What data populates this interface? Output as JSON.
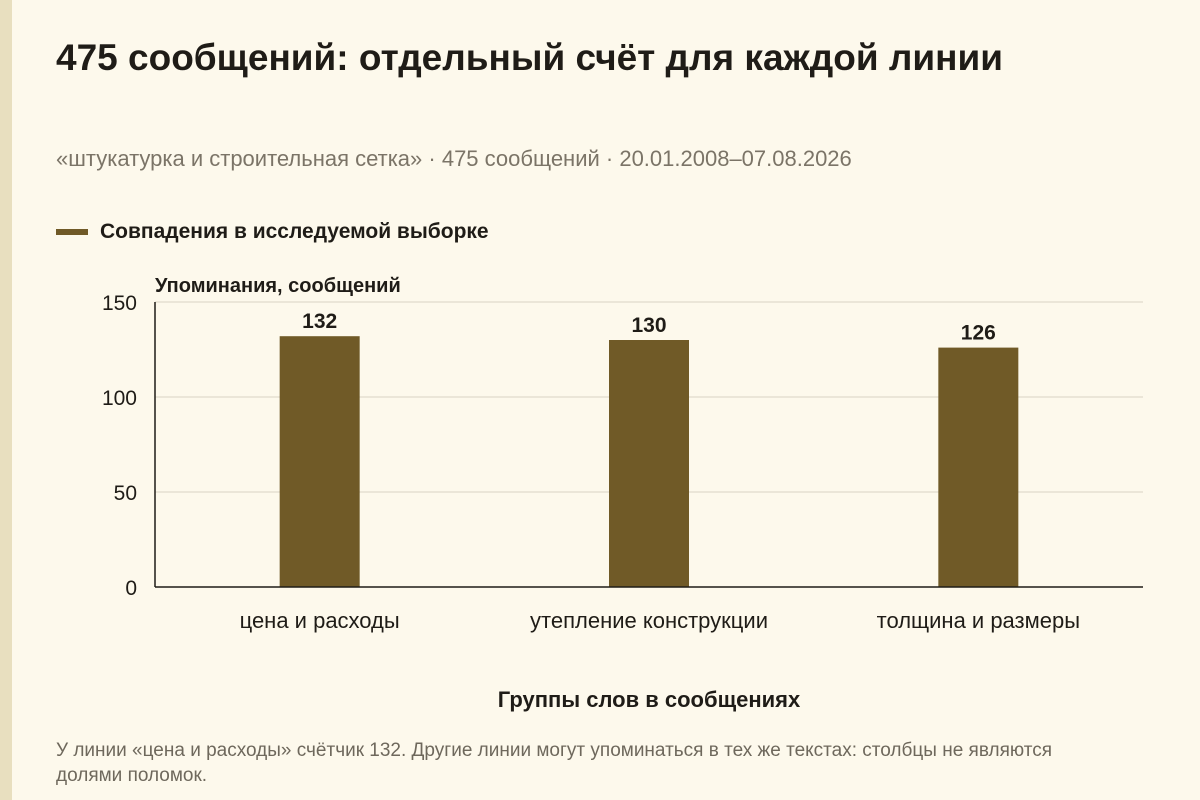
{
  "title": "475 сообщений: отдельный счёт для каждой линии",
  "subtitle": "«штукатурка и строительная сетка» · 475 сообщений · 20.01.2008–07.08.2026",
  "legend": {
    "label": "Совпадения в исследуемой выборке",
    "color": "#705a27"
  },
  "note": "У линии «цена и расходы» счётчик 132. Другие линии могут упоминаться в тех же текстах: столбцы не являются долями поломок.",
  "chart_data": {
    "type": "bar",
    "categories": [
      "цена и расходы",
      "утепление конструкции",
      "толщина и размеры"
    ],
    "series": [
      {
        "name": "Совпадения в исследуемой выборке",
        "values": [
          132,
          130,
          126
        ]
      }
    ],
    "data_labels": [
      "132",
      "130",
      "126"
    ],
    "ylabel": "Упоминания, сообщений",
    "xlabel": "Группы слов в сообщениях",
    "ylim": [
      0,
      150
    ],
    "yticks": [
      0,
      50,
      100,
      150
    ],
    "ytick_labels": [
      "0",
      "50",
      "100",
      "150"
    ],
    "grid": true,
    "legend_position": "top-left",
    "bar_color": "#705a27",
    "grid_color": "#d9d3c4",
    "axis_color": "#1f1c17"
  }
}
